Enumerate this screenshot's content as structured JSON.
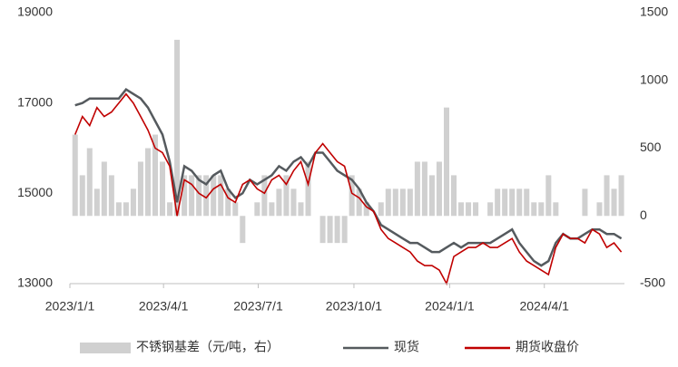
{
  "chart_data": {
    "type": "bar-line",
    "x": [
      "2023-01-06",
      "2023-01-13",
      "2023-01-20",
      "2023-01-27",
      "2023-02-03",
      "2023-02-10",
      "2023-02-17",
      "2023-02-24",
      "2023-03-03",
      "2023-03-10",
      "2023-03-17",
      "2023-03-24",
      "2023-03-31",
      "2023-04-07",
      "2023-04-14",
      "2023-04-21",
      "2023-04-28",
      "2023-05-05",
      "2023-05-12",
      "2023-05-19",
      "2023-05-26",
      "2023-06-02",
      "2023-06-09",
      "2023-06-16",
      "2023-06-23",
      "2023-06-30",
      "2023-07-07",
      "2023-07-14",
      "2023-07-21",
      "2023-07-28",
      "2023-08-04",
      "2023-08-11",
      "2023-08-18",
      "2023-08-25",
      "2023-09-01",
      "2023-09-08",
      "2023-09-15",
      "2023-09-22",
      "2023-09-29",
      "2023-10-06",
      "2023-10-13",
      "2023-10-20",
      "2023-10-27",
      "2023-11-03",
      "2023-11-10",
      "2023-11-17",
      "2023-11-24",
      "2023-12-01",
      "2023-12-08",
      "2023-12-15",
      "2023-12-22",
      "2023-12-29",
      "2024-01-05",
      "2024-01-12",
      "2024-01-19",
      "2024-01-26",
      "2024-02-02",
      "2024-02-09",
      "2024-02-16",
      "2024-02-23",
      "2024-03-01",
      "2024-03-08",
      "2024-03-15",
      "2024-03-22",
      "2024-03-29",
      "2024-04-05",
      "2024-04-12",
      "2024-04-19",
      "2024-04-26",
      "2024-05-03",
      "2024-05-10",
      "2024-05-17",
      "2024-05-24",
      "2024-05-31",
      "2024-06-07",
      "2024-06-14"
    ],
    "series": [
      {
        "name": "不锈钢基差（元/吨，右）",
        "kind": "bar",
        "axis": "y2",
        "color": "#d0d0d0",
        "values": [
          600,
          300,
          500,
          200,
          400,
          300,
          100,
          100,
          200,
          400,
          500,
          600,
          400,
          100,
          1300,
          300,
          300,
          300,
          300,
          300,
          300,
          200,
          100,
          -200,
          0,
          100,
          300,
          100,
          200,
          300,
          200,
          100,
          400,
          0,
          -200,
          -200,
          -200,
          -200,
          300,
          200,
          100,
          0,
          100,
          200,
          200,
          200,
          200,
          400,
          400,
          300,
          400,
          800,
          300,
          100,
          100,
          100,
          0,
          100,
          200,
          200,
          200,
          200,
          200,
          100,
          100,
          300,
          100,
          0,
          0,
          0,
          200,
          0,
          100,
          300,
          200,
          300
        ]
      },
      {
        "name": "现货",
        "kind": "line",
        "color": "#555a5e",
        "values": [
          16950,
          17000,
          17100,
          17100,
          17100,
          17100,
          17100,
          17300,
          17200,
          17100,
          16900,
          16600,
          16300,
          15700,
          14800,
          15600,
          15500,
          15300,
          15200,
          15400,
          15500,
          15100,
          14900,
          15000,
          15300,
          15200,
          15300,
          15400,
          15600,
          15500,
          15700,
          15800,
          15600,
          15900,
          15900,
          15700,
          15500,
          15400,
          15300,
          15100,
          14800,
          14600,
          14300,
          14200,
          14100,
          14000,
          13900,
          13900,
          13800,
          13700,
          13700,
          13800,
          13900,
          13800,
          13900,
          13900,
          13900,
          13900,
          14000,
          14100,
          14200,
          13900,
          13700,
          13500,
          13400,
          13500,
          13900,
          14100,
          14000,
          14000,
          14100,
          14200,
          14200,
          14100,
          14100,
          14000
        ]
      },
      {
        "name": "期货收盘价",
        "kind": "line",
        "color": "#c00000",
        "values": [
          16300,
          16700,
          16500,
          16900,
          16700,
          16800,
          17000,
          17200,
          17000,
          16700,
          16400,
          16000,
          15900,
          15600,
          14500,
          15300,
          15200,
          15000,
          14900,
          15100,
          15200,
          14900,
          14800,
          15200,
          15300,
          15100,
          15000,
          15300,
          15400,
          15200,
          15500,
          15700,
          15200,
          15900,
          16100,
          15900,
          15700,
          15600,
          15000,
          14900,
          14700,
          14600,
          14200,
          14000,
          13900,
          13800,
          13700,
          13500,
          13400,
          13400,
          13300,
          13000,
          13600,
          13700,
          13800,
          13800,
          13900,
          13800,
          13800,
          13900,
          14000,
          13700,
          13500,
          13400,
          13300,
          13200,
          13800,
          14100,
          14000,
          14000,
          13900,
          14200,
          14100,
          13800,
          13900,
          13700
        ]
      }
    ],
    "xlim": [
      "2023-01-01",
      "2024-06-17"
    ],
    "xticks": [
      "2023/1/1",
      "2023/4/1",
      "2023/7/1",
      "2023/10/1",
      "2024/1/1",
      "2024/4/1"
    ],
    "ylim": [
      13000,
      19000
    ],
    "yticks": [
      13000,
      15000,
      17000,
      19000
    ],
    "y2lim": [
      -500,
      1500
    ],
    "y2ticks": [
      -500,
      0,
      500,
      1000,
      1500
    ],
    "legend": "bottom"
  }
}
